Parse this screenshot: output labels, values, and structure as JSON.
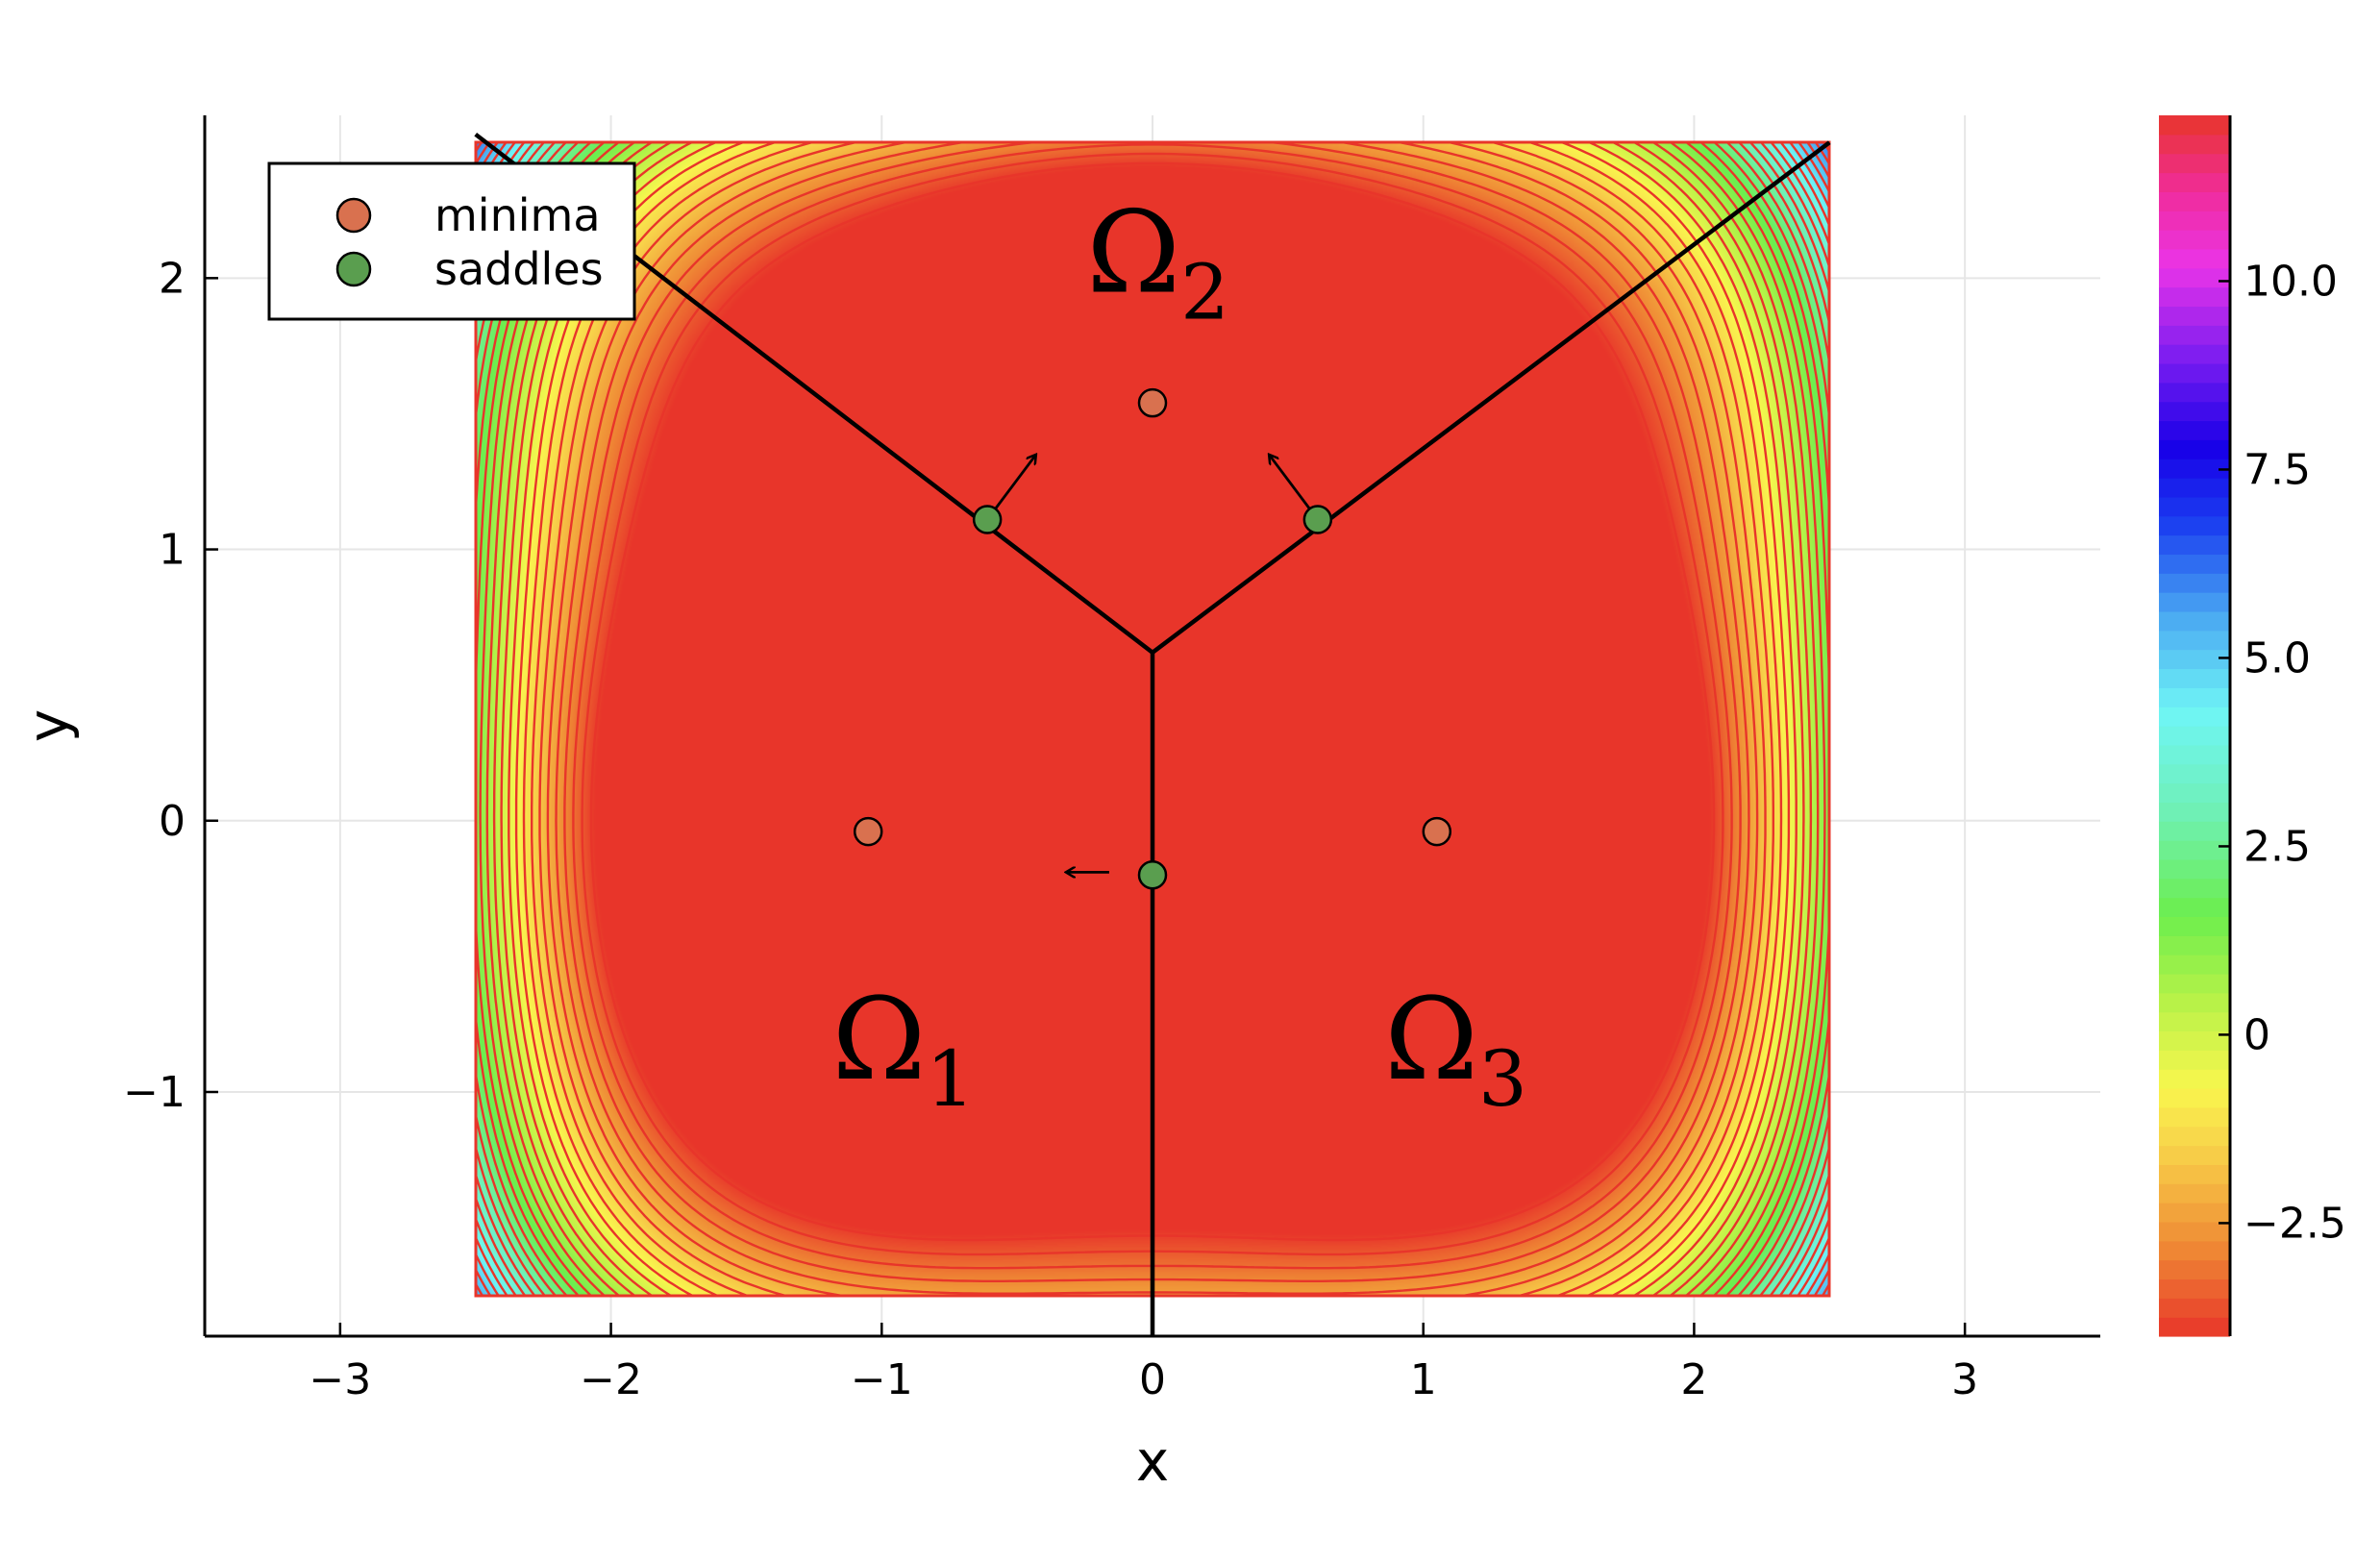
{
  "chart_data": {
    "type": "contour",
    "xlabel": "x",
    "ylabel": "y",
    "xlim": [
      -3.5,
      3.5
    ],
    "ylim": [
      -1.9,
      2.6
    ],
    "xticks": [
      {
        "v": -3,
        "label": "−3"
      },
      {
        "v": -2,
        "label": "−2"
      },
      {
        "v": -1,
        "label": "−1"
      },
      {
        "v": 0,
        "label": "0"
      },
      {
        "v": 1,
        "label": "1"
      },
      {
        "v": 2,
        "label": "2"
      },
      {
        "v": 3,
        "label": "3"
      }
    ],
    "yticks": [
      {
        "v": -1,
        "label": "−1"
      },
      {
        "v": 0,
        "label": "0"
      },
      {
        "v": 1,
        "label": "1"
      },
      {
        "v": 2,
        "label": "2"
      }
    ],
    "contour_domain": {
      "x": [
        -2.5,
        2.5
      ],
      "y": [
        -1.75,
        2.5
      ]
    },
    "color_range": [
      -4.0,
      12.2
    ],
    "colorbar_ticks": [
      {
        "v": -2.5,
        "label": "−2.5"
      },
      {
        "v": 0,
        "label": "0"
      },
      {
        "v": 2.5,
        "label": "2.5"
      },
      {
        "v": 5,
        "label": "5.0"
      },
      {
        "v": 7.5,
        "label": "7.5"
      },
      {
        "v": 10,
        "label": "10.0"
      }
    ],
    "colormap": [
      {
        "v": -4.0,
        "c": "#e8352a"
      },
      {
        "v": -2.8,
        "c": "#ef8a35"
      },
      {
        "v": -1.5,
        "c": "#f8d24a"
      },
      {
        "v": -0.7,
        "c": "#f9f64e"
      },
      {
        "v": 0.5,
        "c": "#b4f248"
      },
      {
        "v": 1.6,
        "c": "#6cee4e"
      },
      {
        "v": 3.0,
        "c": "#6ff0b8"
      },
      {
        "v": 4.3,
        "c": "#6ff5f5"
      },
      {
        "v": 5.6,
        "c": "#49a6f2"
      },
      {
        "v": 6.8,
        "c": "#1a3df0"
      },
      {
        "v": 7.8,
        "c": "#1800e8"
      },
      {
        "v": 9.0,
        "c": "#7d1df0"
      },
      {
        "v": 10.2,
        "c": "#ea34e8"
      },
      {
        "v": 11.2,
        "c": "#f02c9a"
      },
      {
        "v": 12.2,
        "c": "#e8352a"
      }
    ],
    "contour_line_color": "#e8352a",
    "minima": [
      {
        "x": -1.05,
        "y": -0.04
      },
      {
        "x": 0.0,
        "y": 1.54
      },
      {
        "x": 1.05,
        "y": -0.04
      }
    ],
    "saddles": [
      {
        "x": -0.61,
        "y": 1.11
      },
      {
        "x": 0.61,
        "y": 1.11
      },
      {
        "x": 0.0,
        "y": -0.2
      }
    ],
    "minima_color": "#d9714f",
    "saddles_color": "#5a9e4f",
    "boundaries": [
      {
        "x1": 0.0,
        "y1": 0.62,
        "x2": -2.5,
        "y2": 2.53
      },
      {
        "x1": 0.0,
        "y1": 0.62,
        "x2": 2.5,
        "y2": 2.5
      },
      {
        "x1": 0.0,
        "y1": 0.62,
        "x2": 0.0,
        "y2": -1.9
      }
    ],
    "arrows": [
      {
        "x1": -0.61,
        "y1": 1.11,
        "x2": -0.43,
        "y2": 1.35
      },
      {
        "x1": 0.61,
        "y1": 1.11,
        "x2": 0.43,
        "y2": 1.35
      },
      {
        "x1": -0.16,
        "y1": -0.19,
        "x2": -0.32,
        "y2": -0.19
      }
    ],
    "regions": [
      {
        "base": "Ω",
        "sub": "1",
        "x": -0.92,
        "y": -0.95
      },
      {
        "base": "Ω",
        "sub": "2",
        "x": 0.02,
        "y": 1.95
      },
      {
        "base": "Ω",
        "sub": "3",
        "x": 1.12,
        "y": -0.95
      }
    ],
    "legend": {
      "placement": "top-left",
      "entries": [
        {
          "label": "minima",
          "color": "#d9714f"
        },
        {
          "label": "saddles",
          "color": "#5a9e4f"
        }
      ]
    },
    "grid": true
  }
}
